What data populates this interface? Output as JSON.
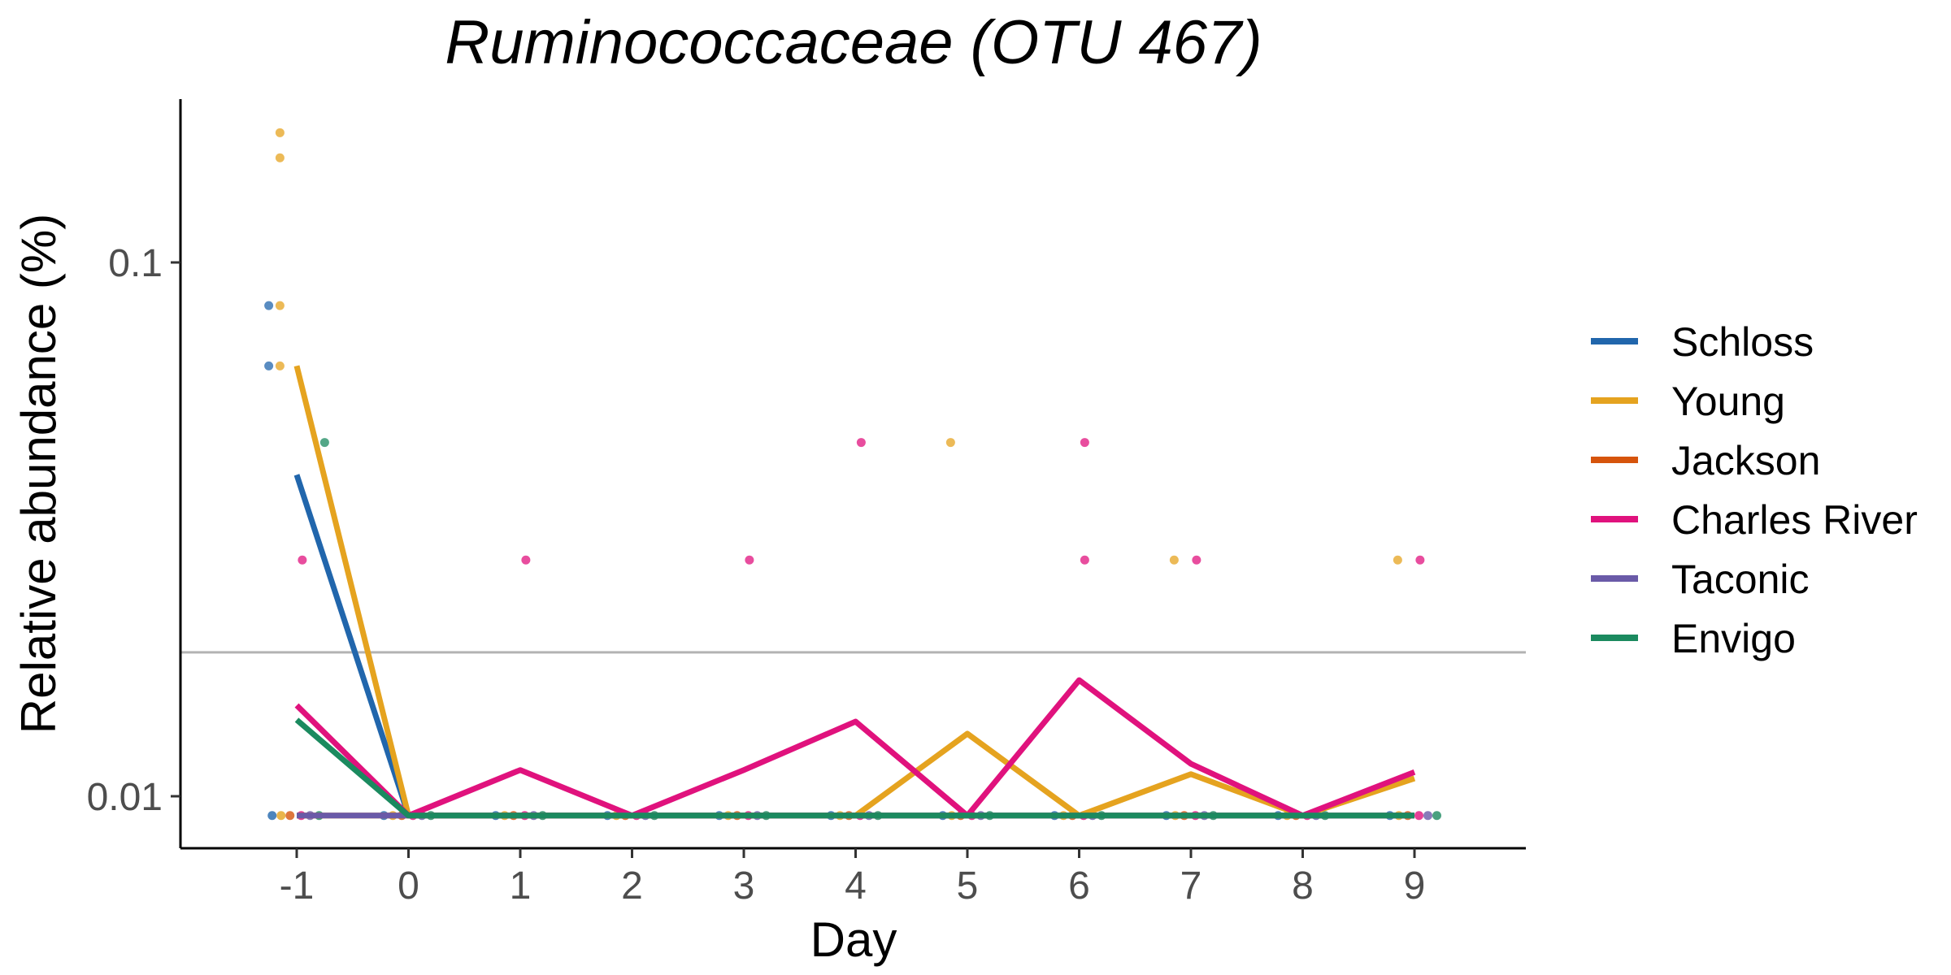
{
  "chart_data": {
    "type": "line",
    "title": "Ruminococcaceae (OTU 467)",
    "xlabel": "Day",
    "ylabel": "Relative abundance (%)",
    "y_scale": "log10",
    "xlim": [
      -2,
      10
    ],
    "ylim": [
      0.008,
      0.2
    ],
    "x_ticks": [
      -1,
      0,
      1,
      2,
      3,
      4,
      5,
      6,
      7,
      8,
      9
    ],
    "x_tick_labels": [
      "-1",
      "0",
      "1",
      "2",
      "3",
      "4",
      "5",
      "6",
      "7",
      "8",
      "9"
    ],
    "y_ticks": [
      0.1,
      0.01
    ],
    "y_tick_labels": [
      "0.1",
      "0.01"
    ],
    "grid": false,
    "legend_position": "right",
    "limit_of_detection": 0.0186,
    "limit_line_color": "#b3b3b3",
    "categories": [
      -1,
      0,
      1,
      2,
      3,
      4,
      5,
      6,
      7,
      8,
      9
    ],
    "series": [
      {
        "name": "Schloss",
        "color": "#2166ac",
        "values": [
          0.04,
          0.0092,
          0.0092,
          0.0092,
          0.0092,
          0.0092,
          0.0092,
          0.0092,
          0.0092,
          0.0092,
          0.0092
        ]
      },
      {
        "name": "Young",
        "color": "#e5a31f",
        "values": [
          0.064,
          0.0092,
          0.0092,
          0.0092,
          0.0092,
          0.0092,
          0.0131,
          0.0092,
          0.011,
          0.0092,
          0.0108
        ]
      },
      {
        "name": "Jackson",
        "color": "#d6540c",
        "values": [
          0.0092,
          0.0092,
          0.0092,
          0.0092,
          0.0092,
          0.0092,
          0.0092,
          0.0092,
          0.0092,
          0.0092,
          0.0092
        ]
      },
      {
        "name": "Charles River",
        "color": "#e0127d",
        "values": [
          0.0148,
          0.0092,
          0.0112,
          0.0092,
          0.0112,
          0.0138,
          0.0092,
          0.0165,
          0.0115,
          0.0092,
          0.0111
        ]
      },
      {
        "name": "Taconic",
        "color": "#6a5aa8",
        "values": [
          0.0092,
          0.0092,
          0.0092,
          0.0092,
          0.0092,
          0.0092,
          0.0092,
          0.0092,
          0.0092,
          0.0092,
          0.0092
        ]
      },
      {
        "name": "Envigo",
        "color": "#1b8a5f",
        "values": [
          0.0139,
          0.0092,
          0.0092,
          0.0092,
          0.0092,
          0.0092,
          0.0092,
          0.0092,
          0.0092,
          0.0092,
          0.0092
        ]
      }
    ],
    "points": [
      {
        "series": "Young",
        "x": -1.15,
        "y": 0.175
      },
      {
        "series": "Young",
        "x": -1.15,
        "y": 0.157
      },
      {
        "series": "Schloss",
        "x": -1.25,
        "y": 0.083
      },
      {
        "series": "Young",
        "x": -1.15,
        "y": 0.083
      },
      {
        "series": "Schloss",
        "x": -1.25,
        "y": 0.064
      },
      {
        "series": "Young",
        "x": -1.15,
        "y": 0.064
      },
      {
        "series": "Envigo",
        "x": -0.75,
        "y": 0.046
      },
      {
        "series": "Charles River",
        "x": -0.95,
        "y": 0.0277
      },
      {
        "series": "Charles River",
        "x": 1.05,
        "y": 0.0277
      },
      {
        "series": "Charles River",
        "x": 3.05,
        "y": 0.0277
      },
      {
        "series": "Charles River",
        "x": 4.05,
        "y": 0.046
      },
      {
        "series": "Young",
        "x": 4.85,
        "y": 0.046
      },
      {
        "series": "Charles River",
        "x": 6.05,
        "y": 0.046
      },
      {
        "series": "Charles River",
        "x": 6.05,
        "y": 0.0277
      },
      {
        "series": "Young",
        "x": 6.85,
        "y": 0.0277
      },
      {
        "series": "Charles River",
        "x": 7.05,
        "y": 0.0277
      },
      {
        "series": "Young",
        "x": 8.85,
        "y": 0.0277
      },
      {
        "series": "Charles River",
        "x": 9.05,
        "y": 0.0277
      }
    ]
  }
}
